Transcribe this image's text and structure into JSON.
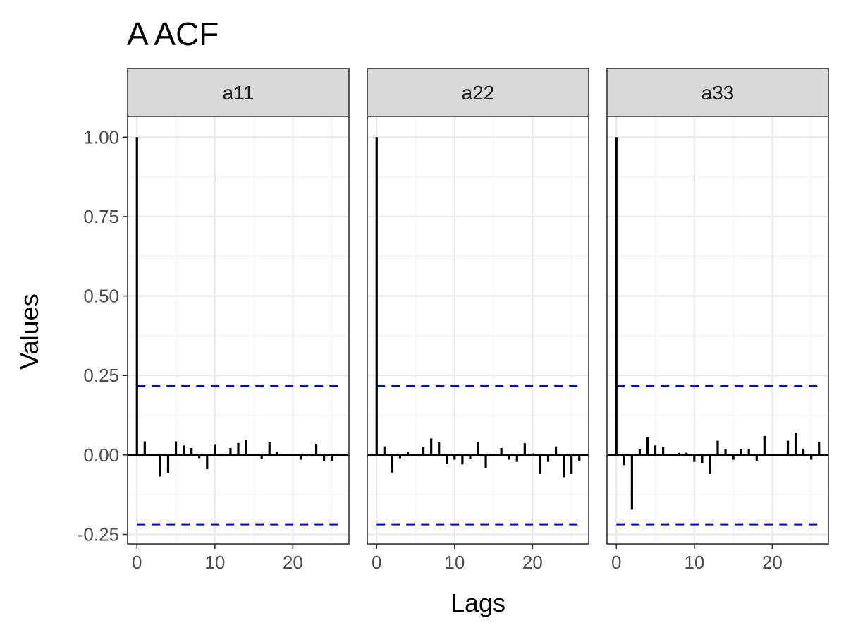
{
  "chart_data": {
    "type": "bar",
    "title": "A ACF",
    "xlabel": "Lags",
    "ylabel": "Values",
    "xlim": [
      -1.2,
      27.2
    ],
    "ylim": [
      -0.28,
      1.065
    ],
    "x_ticks": [
      0,
      10,
      20
    ],
    "x_tick_labels": [
      "0",
      "10",
      "20"
    ],
    "y_ticks": [
      -0.25,
      0,
      0.25,
      0.5,
      0.75,
      1.0
    ],
    "y_tick_labels": [
      "-0.25",
      "0.00",
      "0.25",
      "0.50",
      "0.75",
      "1.00"
    ],
    "confidence_band": 0.218,
    "grid": true,
    "panels": [
      {
        "name": "a11",
        "lags": [
          0,
          1,
          2,
          3,
          4,
          5,
          6,
          7,
          8,
          9,
          10,
          11,
          12,
          13,
          14,
          15,
          16,
          17,
          18,
          19,
          20,
          21,
          22,
          23,
          24,
          25,
          26
        ],
        "values": [
          1.0,
          0.043,
          0.0,
          -0.068,
          -0.057,
          0.043,
          0.03,
          0.022,
          -0.01,
          -0.045,
          0.032,
          -0.005,
          0.022,
          0.038,
          0.048,
          0.0,
          -0.012,
          0.04,
          0.01,
          0.0,
          0.0,
          -0.015,
          -0.005,
          0.035,
          -0.018,
          -0.018,
          0.0
        ]
      },
      {
        "name": "a22",
        "lags": [
          0,
          1,
          2,
          3,
          4,
          5,
          6,
          7,
          8,
          9,
          10,
          11,
          12,
          13,
          14,
          15,
          16,
          17,
          18,
          19,
          20,
          21,
          22,
          23,
          24,
          25,
          26
        ],
        "values": [
          1.0,
          0.027,
          -0.055,
          -0.01,
          0.01,
          0.0,
          0.025,
          0.052,
          0.04,
          -0.027,
          -0.015,
          -0.03,
          -0.013,
          0.042,
          -0.042,
          0.0,
          0.022,
          -0.015,
          -0.022,
          0.037,
          0.005,
          -0.06,
          -0.022,
          0.027,
          -0.07,
          -0.06,
          -0.02
        ]
      },
      {
        "name": "a33",
        "lags": [
          0,
          1,
          2,
          3,
          4,
          5,
          6,
          7,
          8,
          9,
          10,
          11,
          12,
          13,
          14,
          15,
          16,
          17,
          18,
          19,
          20,
          21,
          22,
          23,
          24,
          25,
          26
        ],
        "values": [
          1.0,
          -0.032,
          -0.172,
          0.018,
          0.057,
          0.03,
          0.025,
          0.0,
          0.007,
          0.007,
          -0.022,
          -0.025,
          -0.06,
          0.045,
          0.018,
          -0.015,
          0.018,
          0.02,
          -0.018,
          0.06,
          0.0,
          0.0,
          0.045,
          0.07,
          0.02,
          -0.015,
          0.04
        ]
      }
    ],
    "colors": {
      "bar": "#000000",
      "confidence_line": "#0000ff",
      "strip_fill": "#d9d9d9",
      "panel_border": "#333333",
      "grid_major": "#ebebeb",
      "grid_minor": "#f4f4f4"
    }
  }
}
